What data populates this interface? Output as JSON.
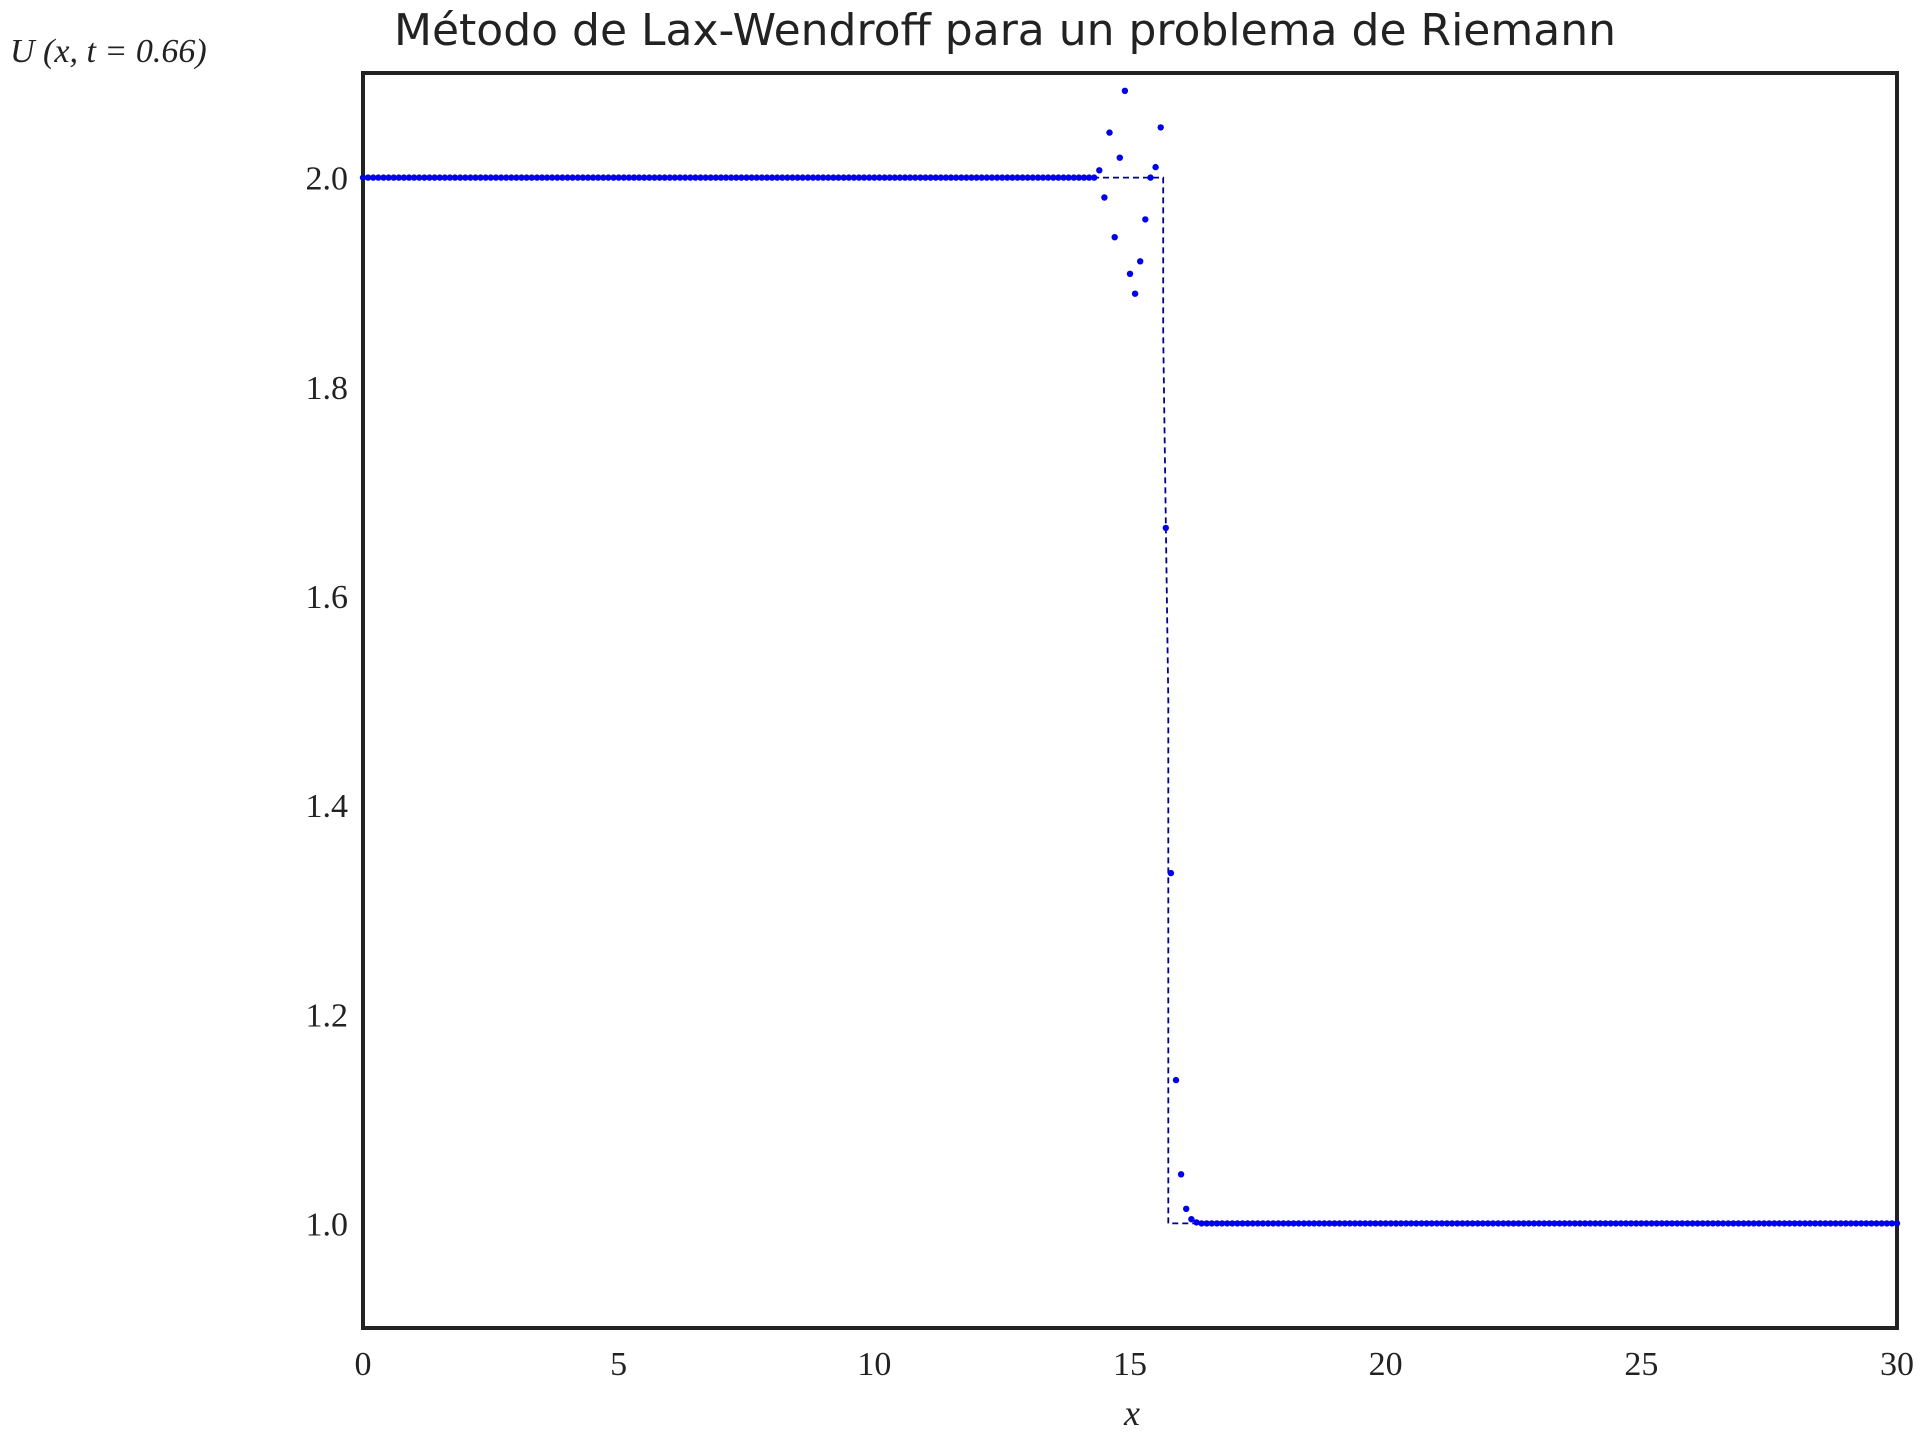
{
  "chart_data": {
    "type": "scatter",
    "title": "Método de Lax-Wendroff para un problema de Riemann",
    "xlabel": "x",
    "ylabel": "U (x, t = 0.66)",
    "xlim": [
      0,
      30
    ],
    "ylim": [
      0.9,
      2.1
    ],
    "x_ticks": [
      "0",
      "5",
      "10",
      "15",
      "20",
      "25",
      "30"
    ],
    "y_ticks": [
      "1.0",
      "1.2",
      "1.4",
      "1.6",
      "1.8",
      "2.0"
    ],
    "grid": false,
    "colors": {
      "points": "#0000ee",
      "exact": "#00008b",
      "frame": "#222222"
    },
    "series": [
      {
        "type": "scatter",
        "style": "dots",
        "step": 0.1,
        "left_value": 2.0,
        "right_value": 1.0,
        "x": [
          14.2,
          14.3,
          14.4,
          14.5,
          14.6,
          14.7,
          14.8,
          14.9,
          15.0,
          15.1,
          15.2,
          15.3,
          15.4,
          15.5,
          15.6,
          15.7,
          15.8,
          15.9,
          16.0,
          16.1,
          16.2,
          16.3
        ],
        "y": [
          2.0,
          2.0,
          2.007,
          1.981,
          2.043,
          1.943,
          2.019,
          2.083,
          1.908,
          1.889,
          1.92,
          1.96,
          2.0,
          2.01,
          2.048,
          1.665,
          1.335,
          1.137,
          1.047,
          1.014,
          1.004,
          1.001
        ]
      },
      {
        "type": "line",
        "style": "dashed",
        "x": [
          0,
          15.65,
          15.65,
          15.75,
          15.75,
          30
        ],
        "y": [
          2.0,
          2.0,
          1.85,
          1.5,
          1.0,
          1.0
        ]
      }
    ]
  }
}
